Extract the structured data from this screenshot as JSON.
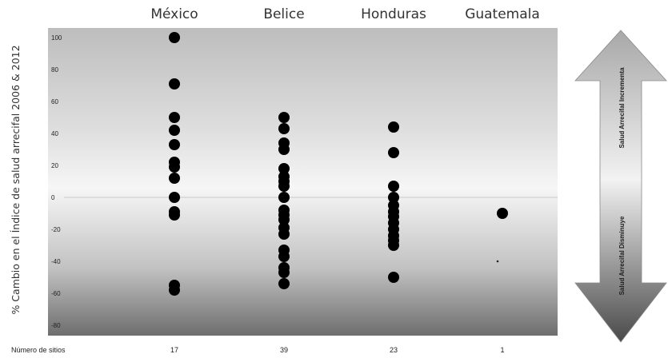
{
  "chart_data": {
    "type": "scatter",
    "categories": [
      "México",
      "Belice",
      "Honduras",
      "Guatemala"
    ],
    "ylabel": "% Cambio en el Índice de salud arrecifal 2006 & 2012",
    "ylim": [
      -85,
      107
    ],
    "yticks": [
      100,
      80,
      60,
      40,
      20,
      0,
      -20,
      -40,
      -60,
      -80
    ],
    "count_label": "Número de sitios",
    "counts": [
      "17",
      "39",
      "23",
      "1"
    ],
    "series": [
      {
        "category": "México",
        "values": [
          100,
          71,
          50,
          42,
          33,
          22,
          19,
          12,
          0,
          -9,
          -11,
          -55,
          -58
        ]
      },
      {
        "category": "Belice",
        "values": [
          50,
          43,
          34,
          30,
          18,
          13,
          10,
          7,
          0,
          -8,
          -11,
          -14,
          -19,
          -23,
          -33,
          -37,
          -44,
          -47,
          -54
        ]
      },
      {
        "category": "Honduras",
        "values": [
          44,
          28,
          7,
          0,
          -5,
          -9,
          -12,
          -16,
          -20,
          -24,
          -27,
          -30,
          -50
        ]
      },
      {
        "category": "Guatemala",
        "values": [
          -10
        ]
      }
    ],
    "arrow": {
      "up_label": "Salud Arrecifal Incrementa",
      "down_label": "Salud Arrecifal Disminuye"
    },
    "colors": {
      "marker": "#000000",
      "zero_line": "#d0d0d0"
    }
  }
}
